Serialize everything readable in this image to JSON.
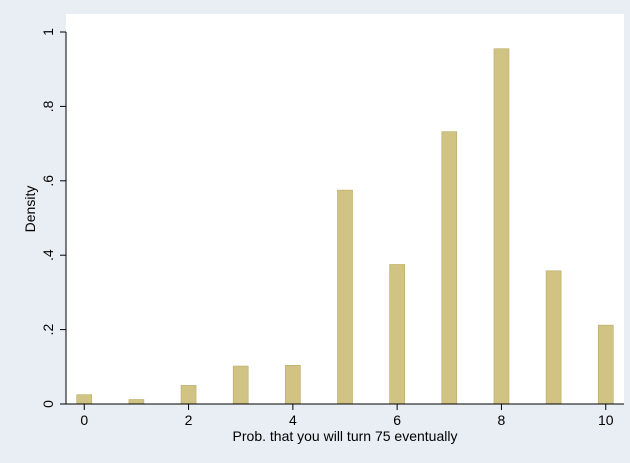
{
  "chart_data": {
    "type": "bar",
    "title": "",
    "xlabel": "Prob. that you will turn 75 eventually",
    "ylabel": "Density",
    "x": [
      0,
      1,
      2,
      3,
      4,
      5,
      6,
      7,
      8,
      9,
      10
    ],
    "values": [
      0.025,
      0.012,
      0.05,
      0.102,
      0.104,
      0.575,
      0.375,
      0.732,
      0.955,
      0.358,
      0.212
    ],
    "xlim": [
      -0.35,
      10.35
    ],
    "ylim": [
      0,
      1.0
    ],
    "x_ticks": [
      0,
      2,
      4,
      6,
      8,
      10
    ],
    "x_tick_labels": [
      "0",
      "2",
      "4",
      "6",
      "8",
      "10"
    ],
    "y_ticks": [
      0,
      0.2,
      0.4,
      0.6,
      0.8,
      1.0
    ],
    "y_tick_labels": [
      "0",
      ".2",
      ".4",
      ".6",
      ".8",
      "1"
    ],
    "grid": false,
    "legend": "none",
    "bar_color": "#d1c383",
    "bar_edge_color": "#b8a862",
    "plot_background": "#ffffff",
    "page_background": "#e8eef3"
  }
}
